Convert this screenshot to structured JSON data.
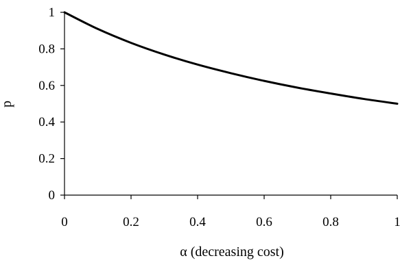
{
  "chart_data": {
    "type": "line",
    "title": "",
    "xlabel": "α (decreasing cost)",
    "ylabel": "p",
    "xlim": [
      0,
      1
    ],
    "ylim": [
      0,
      1
    ],
    "x_ticks": [
      "0",
      "0.2",
      "0.4",
      "0.6",
      "0.8",
      "1"
    ],
    "y_ticks": [
      "0",
      "0.2",
      "0.4",
      "0.6",
      "0.8",
      "1"
    ],
    "grid": false,
    "legend": "none",
    "series": [
      {
        "color": "#000000",
        "x": [
          0,
          0.1,
          0.2,
          0.3,
          0.4,
          0.5,
          0.6,
          0.7,
          0.8,
          0.9,
          1.0
        ],
        "y": [
          1.0,
          0.909,
          0.833,
          0.769,
          0.714,
          0.667,
          0.625,
          0.588,
          0.556,
          0.526,
          0.5
        ]
      }
    ]
  }
}
